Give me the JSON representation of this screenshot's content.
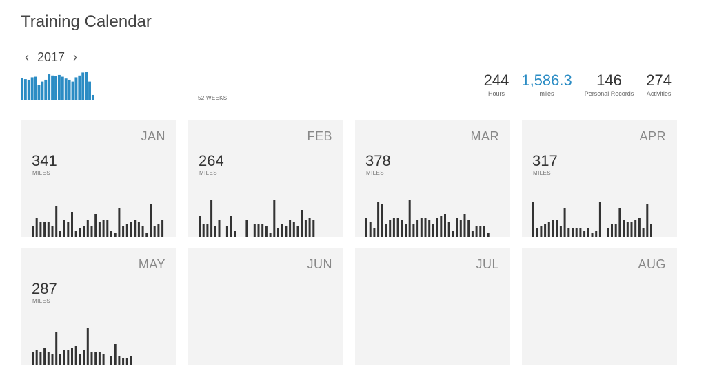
{
  "header": {
    "title": "Training Calendar"
  },
  "year_nav": {
    "prev": "‹",
    "year": "2017",
    "next": "›"
  },
  "weekly_chart": {
    "label": "52 WEEKS",
    "color": "#2b8cc4",
    "values": [
      72,
      68,
      66,
      74,
      76,
      50,
      60,
      66,
      84,
      80,
      78,
      82,
      76,
      70,
      66,
      60,
      74,
      80,
      90,
      92,
      60,
      16,
      0,
      0,
      0,
      0,
      0,
      0,
      0,
      0,
      0,
      0,
      0,
      0,
      0,
      0,
      0,
      0,
      0,
      0,
      0,
      0,
      0,
      0,
      0,
      0,
      0,
      0,
      0,
      0,
      0,
      0
    ]
  },
  "stats": [
    {
      "value": "244",
      "label": "Hours",
      "accent": false
    },
    {
      "value": "1,586.3",
      "label": "miles",
      "accent": true
    },
    {
      "value": "146",
      "label": "Personal Records",
      "accent": false
    },
    {
      "value": "274",
      "label": "Activities",
      "accent": false
    }
  ],
  "months": [
    {
      "name": "JAN",
      "miles": "341",
      "unit": "MILES",
      "daily": [
        5,
        9,
        7,
        7,
        7,
        5,
        15,
        3,
        8,
        7,
        12,
        3,
        4,
        5,
        8,
        5,
        11,
        7,
        8,
        8,
        3,
        2,
        14,
        5,
        6,
        7,
        8,
        7,
        5,
        2,
        16,
        5,
        6,
        8
      ]
    },
    {
      "name": "FEB",
      "miles": "264",
      "unit": "MILES",
      "daily": [
        10,
        6,
        6,
        18,
        5,
        8,
        0,
        5,
        10,
        3,
        0,
        0,
        8,
        0,
        6,
        6,
        6,
        5,
        2,
        18,
        4,
        6,
        5,
        8,
        7,
        5,
        13,
        8,
        9,
        8
      ]
    },
    {
      "name": "MAR",
      "miles": "378",
      "unit": "MILES",
      "daily": [
        9,
        7,
        4,
        17,
        16,
        6,
        8,
        9,
        9,
        8,
        6,
        18,
        6,
        8,
        9,
        9,
        8,
        6,
        9,
        10,
        11,
        7,
        3,
        9,
        8,
        11,
        8,
        3,
        5,
        5,
        5,
        2,
        0,
        0,
        0
      ]
    },
    {
      "name": "APR",
      "miles": "317",
      "unit": "MILES",
      "daily": [
        17,
        4,
        5,
        6,
        7,
        8,
        8,
        5,
        14,
        4,
        4,
        4,
        4,
        3,
        4,
        2,
        3,
        17,
        0,
        4,
        6,
        6,
        14,
        8,
        7,
        7,
        8,
        9,
        4,
        16,
        6
      ]
    },
    {
      "name": "MAY",
      "miles": "287",
      "unit": "MILES",
      "daily": [
        6,
        7,
        6,
        8,
        6,
        5,
        16,
        5,
        7,
        7,
        8,
        9,
        5,
        7,
        18,
        6,
        6,
        6,
        5,
        0,
        4,
        10,
        4,
        3,
        3,
        4
      ]
    },
    {
      "name": "JUN",
      "miles": "",
      "unit": "",
      "daily": []
    },
    {
      "name": "JUL",
      "miles": "",
      "unit": "",
      "daily": []
    },
    {
      "name": "AUG",
      "miles": "",
      "unit": "",
      "daily": []
    }
  ]
}
